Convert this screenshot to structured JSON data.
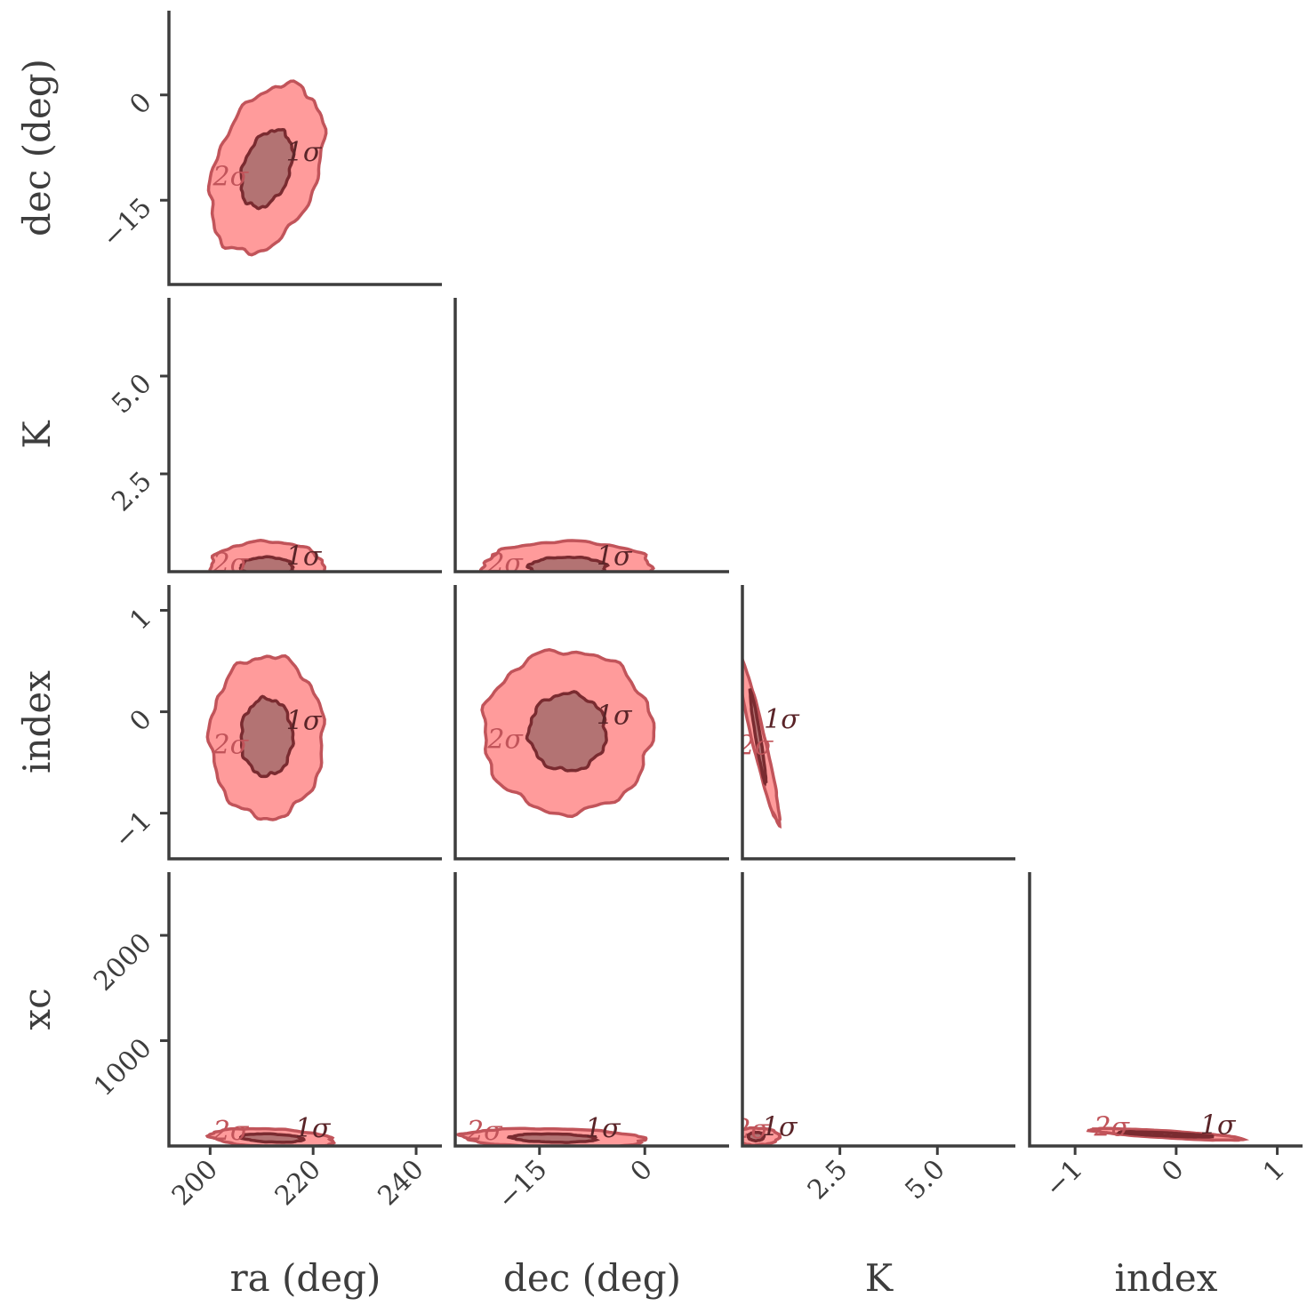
{
  "chart_data": {
    "type": "corner",
    "parameters": [
      "ra",
      "dec",
      "K",
      "index",
      "xc"
    ],
    "labels": {
      "ra": "ra (deg)",
      "dec": "dec (deg)",
      "K": "K",
      "index": "index",
      "xc": "xc"
    },
    "ranges": {
      "ra": [
        192,
        245
      ],
      "dec": [
        -27,
        12
      ],
      "K": [
        0,
        7
      ],
      "index": [
        -1.45,
        1.25
      ],
      "xc": [
        0,
        2600
      ]
    },
    "ticks": {
      "ra": [
        200,
        220,
        240
      ],
      "dec": [
        -15,
        0
      ],
      "K": [
        2.5,
        5.0
      ],
      "index": [
        -1,
        0,
        1
      ],
      "xc": [
        1000,
        2000
      ]
    },
    "tick_labels": {
      "ra": [
        "200",
        "220",
        "240"
      ],
      "dec": [
        "−15",
        "0"
      ],
      "K": [
        "2.5",
        "5.0"
      ],
      "index": [
        "−1",
        "0",
        "1"
      ],
      "xc": [
        "1000",
        "2000"
      ]
    },
    "contour_levels": [
      "1σ",
      "2σ"
    ],
    "colors": {
      "outer_fill": "#ff9b9b",
      "outer_edge": "#c1545a",
      "inner_fill": "#b37373",
      "inner_edge": "#7a2b30",
      "axis": "#3d3d3d"
    },
    "panels": [
      {
        "x": "ra",
        "y": "dec",
        "center": [
          211,
          -10.5
        ],
        "sigma1": [
          5,
          5.5
        ],
        "sigma2": [
          11,
          12
        ],
        "rho": 0.35
      },
      {
        "x": "ra",
        "y": "K",
        "center": [
          211,
          0.12
        ],
        "sigma1": [
          5,
          0.25
        ],
        "sigma2": [
          11,
          0.65
        ],
        "rho": 0.0
      },
      {
        "x": "dec",
        "y": "K",
        "center": [
          -11,
          0.12
        ],
        "sigma1": [
          5.5,
          0.25
        ],
        "sigma2": [
          12,
          0.65
        ],
        "rho": 0.0
      },
      {
        "x": "ra",
        "y": "index",
        "center": [
          211,
          -0.25
        ],
        "sigma1": [
          5,
          0.38
        ],
        "sigma2": [
          11,
          0.8
        ],
        "rho": 0.0
      },
      {
        "x": "dec",
        "y": "index",
        "center": [
          -11,
          -0.2
        ],
        "sigma1": [
          5.5,
          0.38
        ],
        "sigma2": [
          12,
          0.8
        ],
        "rho": 0.0
      },
      {
        "x": "K",
        "y": "index",
        "center": [
          0.4,
          -0.25
        ],
        "sigma1": [
          0.2,
          0.45
        ],
        "sigma2": [
          0.55,
          0.85
        ],
        "rho": -0.95
      },
      {
        "x": "ra",
        "y": "xc",
        "center": [
          212,
          75
        ],
        "sigma1": [
          6,
          40
        ],
        "sigma2": [
          12,
          90
        ],
        "rho": -0.3
      },
      {
        "x": "dec",
        "y": "xc",
        "center": [
          -13,
          75
        ],
        "sigma1": [
          6,
          40
        ],
        "sigma2": [
          13,
          90
        ],
        "rho": -0.2
      },
      {
        "x": "K",
        "y": "xc",
        "center": [
          0.35,
          90
        ],
        "sigma1": [
          0.2,
          40
        ],
        "sigma2": [
          0.6,
          80
        ],
        "rho": 0.0
      },
      {
        "x": "index",
        "y": "xc",
        "center": [
          -0.1,
          110
        ],
        "sigma1": [
          0.45,
          25
        ],
        "sigma2": [
          0.75,
          55
        ],
        "rho": -0.8
      }
    ]
  }
}
